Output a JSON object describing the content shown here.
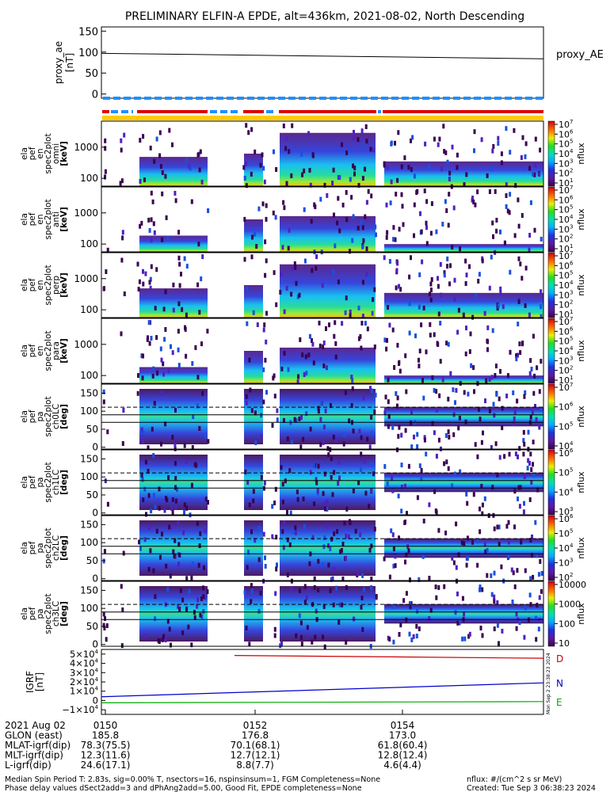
{
  "title": "PRELIMINARY ELFIN-A EPDE, alt=436km, 2021-08-02, North Descending",
  "proxy_ae": {
    "ylabel": "proxy_ae\n[nT]",
    "legend": "proxy_AE",
    "yticks": [
      "150",
      "100",
      "50",
      "0"
    ],
    "ylim": [
      -10,
      160
    ],
    "line": [
      97,
      84
    ]
  },
  "spec_en_panels": [
    {
      "ylabel": [
        "ela",
        "pef",
        "en",
        "spec2plot",
        "omni",
        "[keV]"
      ],
      "yticks": [
        "1000",
        "100"
      ],
      "cbticks": [
        "10^7",
        "10^6",
        "10^5",
        "10^4",
        "10^3",
        "10^2",
        "10^1"
      ],
      "cblabel": "nflux"
    },
    {
      "ylabel": [
        "ela",
        "pef",
        "en",
        "spec2plot",
        "anti",
        "[keV]"
      ],
      "yticks": [
        "1000",
        "100"
      ],
      "cbticks": [
        "10^7",
        "10^6",
        "10^5",
        "10^4",
        "10^3",
        "10^2",
        "10^1"
      ],
      "cblabel": "nflux"
    },
    {
      "ylabel": [
        "ela",
        "pef",
        "en",
        "spec2plot",
        "perp",
        "[keV]"
      ],
      "yticks": [
        "1000",
        "100"
      ],
      "cbticks": [
        "10^7",
        "10^6",
        "10^5",
        "10^4",
        "10^3",
        "10^2",
        "10^1"
      ],
      "cblabel": "nflux"
    },
    {
      "ylabel": [
        "ela",
        "pef",
        "en",
        "spec2plot",
        "para",
        "[keV]"
      ],
      "yticks": [
        "1000",
        "100"
      ],
      "cbticks": [
        "10^7",
        "10^6",
        "10^5",
        "10^4",
        "10^3",
        "10^2",
        "10^1"
      ],
      "cblabel": "nflux"
    }
  ],
  "spec_pa_panels": [
    {
      "ylabel": [
        "ela",
        "pef",
        "pa",
        "spec2plot",
        "ch0LC",
        "[deg]"
      ],
      "yticks": [
        "150",
        "100",
        "50",
        "0"
      ],
      "cbticks": [
        "10^7",
        "10^6",
        "10^5",
        "10^4"
      ],
      "cblabel": "nflux"
    },
    {
      "ylabel": [
        "ela",
        "pef",
        "pa",
        "spec2plot",
        "ch1LC",
        "[deg]"
      ],
      "yticks": [
        "150",
        "100",
        "50",
        "0"
      ],
      "cbticks": [
        "10^6",
        "10^5",
        "10^4",
        "10^3"
      ],
      "cblabel": "nflux"
    },
    {
      "ylabel": [
        "ela",
        "pef",
        "pa",
        "spec2plot",
        "ch2LC",
        "[deg]"
      ],
      "yticks": [
        "150",
        "100",
        "50",
        "0"
      ],
      "cbticks": [
        "10^6",
        "10^5",
        "10^4",
        "10^3",
        "10^2"
      ],
      "cblabel": "nflux"
    },
    {
      "ylabel": [
        "ela",
        "pef",
        "pa",
        "spec2plot",
        "ch3LC",
        "[deg]"
      ],
      "yticks": [
        "150",
        "100",
        "50",
        "0"
      ],
      "cbticks": [
        "10000",
        "1000",
        "100",
        "10"
      ],
      "cblabel": "nflux"
    }
  ],
  "igrf": {
    "ylabel": "IGRF\n[nT]",
    "yticks": [
      "5×10^4",
      "4×10^4",
      "3×10^4",
      "2×10^4",
      "1×10^4",
      "0",
      "−1×10^4"
    ],
    "ylim": [
      -15000,
      55000
    ],
    "series": [
      {
        "name": "D",
        "color": "#cc0000",
        "values": [
          48500,
          45500
        ]
      },
      {
        "name": "N",
        "color": "#0000cc",
        "values": [
          4000,
          19000
        ]
      },
      {
        "name": "E",
        "color": "#00aa00",
        "values": [
          -2500,
          -1200
        ]
      }
    ],
    "side_text": "Mon Sep 2 23:38:23 2024"
  },
  "time_axis": {
    "ticks": [
      "0150",
      "0152",
      "0154"
    ]
  },
  "ephemeris": [
    {
      "label": "2021 Aug 02",
      "values": [
        "0150",
        "0152",
        "0154"
      ]
    },
    {
      "label": "GLON (east)",
      "values": [
        "185.8",
        "176.8",
        "173.0"
      ]
    },
    {
      "label": "MLAT-igrf(dip)",
      "values": [
        "78.3(75.5)",
        "70.1(68.1)",
        "61.8(60.4)"
      ]
    },
    {
      "label": "MLT-igrf(dip)",
      "values": [
        "12.3(11.6)",
        "12.7(12.1)",
        "12.8(12.4)"
      ]
    },
    {
      "label": "L-igrf(dip)",
      "values": [
        "24.6(17.1)",
        "8.8(7.7)",
        "4.6(4.4)"
      ]
    }
  ],
  "footer": {
    "line1_left": "Median Spin Period T: 2.83s, sig=0.00% T, nsectors=16, nspinsinsum=1, FGM Completeness=None",
    "line2_left": "Phase delay values dSect2add=3 and dPhAng2add=5.00, Good Fit, EPDE completeness=None",
    "line1_right": "nflux: #/(cm^2 s sr MeV)",
    "line2_right": "Created: Tue Sep  3 06:38:23 2024"
  },
  "colors": {
    "bar_red": "#dd0000",
    "bar_blue": "#1e90ff",
    "bar_yellow": "#ffcc00"
  }
}
